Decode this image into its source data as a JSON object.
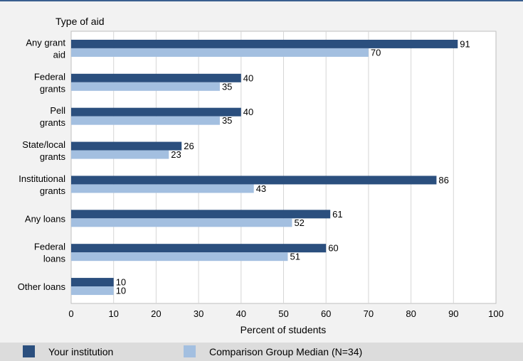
{
  "chart_data": {
    "type": "bar",
    "orientation": "horizontal",
    "y_title": "Type of aid",
    "xlabel": "Percent of students",
    "xlim": [
      0,
      100
    ],
    "xticks": [
      0,
      10,
      20,
      30,
      40,
      50,
      60,
      70,
      80,
      90,
      100
    ],
    "grid": true,
    "legend_position": "bottom",
    "categories": [
      [
        "Any grant",
        "aid"
      ],
      [
        "Federal",
        "grants"
      ],
      [
        "Pell",
        "grants"
      ],
      [
        "State/local",
        "grants"
      ],
      [
        "Institutional",
        "grants"
      ],
      [
        "Any loans"
      ],
      [
        "Federal",
        "loans"
      ],
      [
        "Other loans"
      ]
    ],
    "series": [
      {
        "name": "Your institution",
        "color": "#2b4f7e",
        "values": [
          91,
          40,
          40,
          26,
          86,
          61,
          60,
          10
        ]
      },
      {
        "name": "Comparison Group Median (N=34)",
        "color": "#a3bfe0",
        "values": [
          70,
          35,
          35,
          23,
          43,
          52,
          51,
          10
        ]
      }
    ]
  }
}
